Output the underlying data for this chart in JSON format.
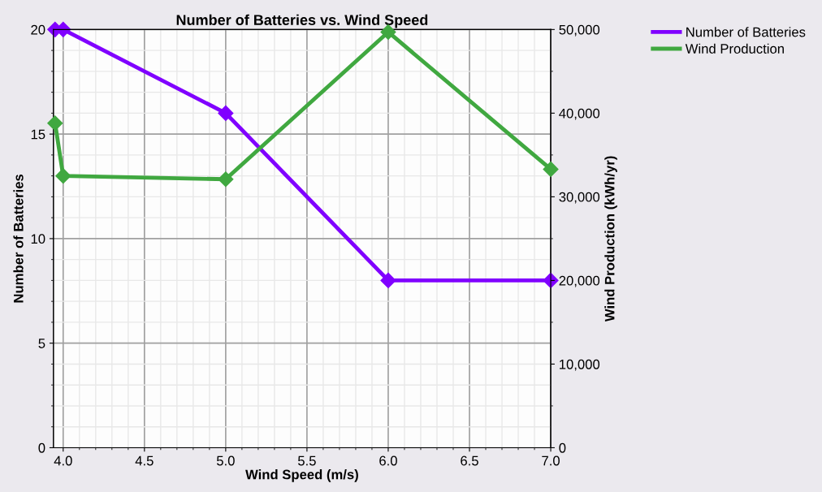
{
  "chart_data": {
    "type": "line",
    "title": "Number of Batteries vs. Wind Speed",
    "xlabel": "Wind Speed (m/s)",
    "ylabel": "Number of Batteries",
    "y2label": "Wind Production (kWh/yr)",
    "series": [
      {
        "name": "Number of Batteries",
        "color": "#8000ff",
        "x": [
          3.95,
          4.0,
          5.0,
          6.0,
          7.0
        ],
        "values": [
          20,
          20,
          16,
          8,
          8
        ]
      },
      {
        "name": "Wind Production",
        "color": "#40a840",
        "axis": "y2",
        "x": [
          3.95,
          4.0,
          5.0,
          6.0,
          7.0
        ],
        "values": [
          38800,
          32500,
          32100,
          49700,
          33300
        ]
      }
    ],
    "xlim": [
      3.94,
      7.0
    ],
    "xticks": [
      {
        "value": 4.0,
        "label": "4.0"
      },
      {
        "value": 4.5,
        "label": "4.5"
      },
      {
        "value": 5.0,
        "label": "5.0"
      },
      {
        "value": 5.5,
        "label": "5.5"
      },
      {
        "value": 6.0,
        "label": "6.0"
      },
      {
        "value": 6.5,
        "label": "6.5"
      },
      {
        "value": 7.0,
        "label": "7.0"
      }
    ],
    "ylim": [
      0,
      20
    ],
    "yticks": [
      0,
      5,
      10,
      15,
      20
    ],
    "y2lim": [
      0,
      50000
    ],
    "y2ticks": [
      0,
      {
        "value": 10000,
        "label": "10,000"
      },
      {
        "value": 20000,
        "label": "20,000"
      },
      {
        "value": 30000,
        "label": "30,000"
      },
      {
        "value": 40000,
        "label": "40,000"
      },
      {
        "value": 50000,
        "label": "50,000"
      }
    ],
    "grid": true,
    "legend": "top right",
    "marker": "diamond",
    "line_style": "solid"
  }
}
